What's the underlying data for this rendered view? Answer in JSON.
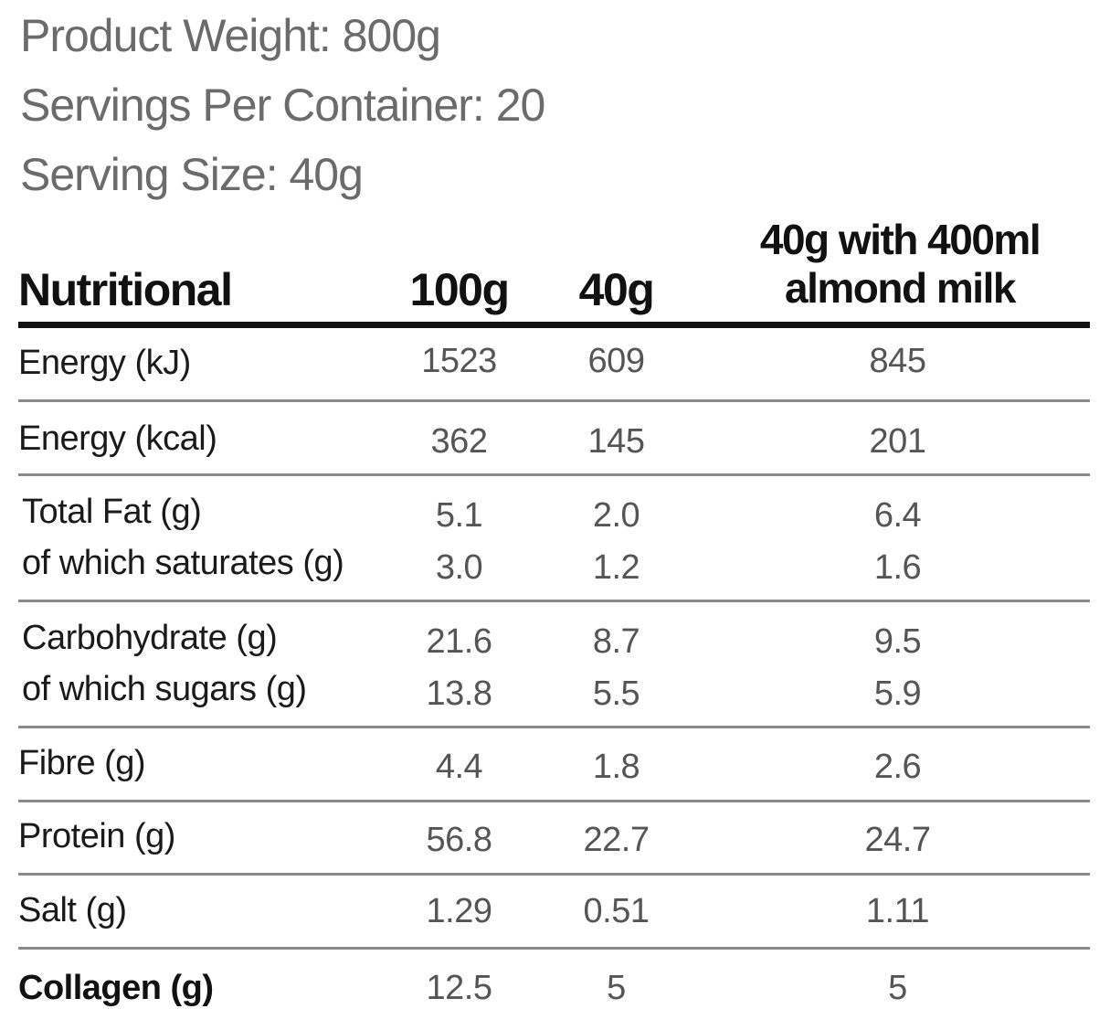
{
  "product_info": {
    "weight": "Product Weight: 800g",
    "servings": "Servings Per Container: 20",
    "serving_size": "Serving Size: 40g"
  },
  "table": {
    "headers": {
      "nutritional": "Nutritional",
      "per_100g": "100g",
      "per_40g": "40g",
      "with_milk": "40g with 400ml almond milk"
    },
    "rows": [
      {
        "label": "Energy (kJ)",
        "v100": "1523",
        "v40": "609",
        "vmilk": "845"
      },
      {
        "label": "Energy (kcal)",
        "v100": "362",
        "v40": "145",
        "vmilk": "201"
      },
      {
        "label": "Total Fat (g)",
        "v100": "5.1",
        "v40": "2.0",
        "vmilk": "6.4"
      },
      {
        "label": "of which saturates (g)",
        "v100": "3.0",
        "v40": "1.2",
        "vmilk": "1.6"
      },
      {
        "label": "Carbohydrate (g)",
        "v100": "21.6",
        "v40": "8.7",
        "vmilk": "9.5"
      },
      {
        "label": "of which sugars (g)",
        "v100": "13.8",
        "v40": "5.5",
        "vmilk": "5.9"
      },
      {
        "label": "Fibre (g)",
        "v100": "4.4",
        "v40": "1.8",
        "vmilk": "2.6"
      },
      {
        "label": "Protein (g)",
        "v100": "56.8",
        "v40": "22.7",
        "vmilk": "24.7"
      },
      {
        "label": "Salt (g)",
        "v100": "1.29",
        "v40": "0.51",
        "vmilk": "1.11"
      },
      {
        "label": "Collagen (g)",
        "v100": "12.5",
        "v40": "5",
        "vmilk": "5"
      }
    ]
  }
}
